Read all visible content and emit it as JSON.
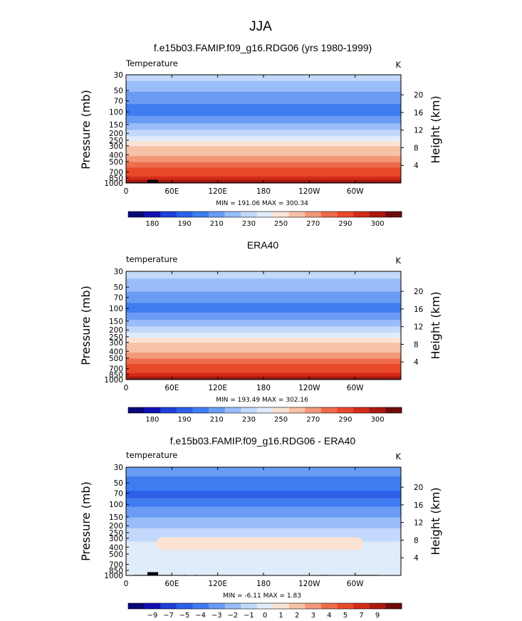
{
  "figure": {
    "title": "JJA"
  },
  "colorbars": {
    "temp": {
      "colors": [
        "#08087a",
        "#1010b4",
        "#1f3fd8",
        "#2d5fe8",
        "#3f7cf0",
        "#6a9cf4",
        "#98bdf8",
        "#c2d9fb",
        "#e1ecfb",
        "#fbe2d4",
        "#f6c1a6",
        "#f2977a",
        "#ee6b4c",
        "#e9482a",
        "#d42b18",
        "#a81a10",
        "#6e0c0c"
      ],
      "labels": [
        {
          "idx": 1,
          "text": "180"
        },
        {
          "idx": 3,
          "text": "190"
        },
        {
          "idx": 5,
          "text": "210"
        },
        {
          "idx": 7,
          "text": "230"
        },
        {
          "idx": 9,
          "text": "250"
        },
        {
          "idx": 11,
          "text": "270"
        },
        {
          "idx": 13,
          "text": "290"
        },
        {
          "idx": 15,
          "text": "300"
        }
      ]
    },
    "diff": {
      "colors": [
        "#08087a",
        "#1010b4",
        "#1f3fd8",
        "#2d5fe8",
        "#3f7cf0",
        "#6a9cf4",
        "#98bdf8",
        "#c2d9fb",
        "#e1ecfb",
        "#fbe2d4",
        "#f6c1a6",
        "#f2977a",
        "#ee6b4c",
        "#e9482a",
        "#d42b18",
        "#a81a10",
        "#6e0c0c"
      ],
      "labels": [
        {
          "idx": 1,
          "text": "−9"
        },
        {
          "idx": 2,
          "text": "−7"
        },
        {
          "idx": 3,
          "text": "−5"
        },
        {
          "idx": 4,
          "text": "−4"
        },
        {
          "idx": 5,
          "text": "−3"
        },
        {
          "idx": 6,
          "text": "−2"
        },
        {
          "idx": 7,
          "text": "−1"
        },
        {
          "idx": 8,
          "text": "0"
        },
        {
          "idx": 9,
          "text": "1"
        },
        {
          "idx": 10,
          "text": "2"
        },
        {
          "idx": 11,
          "text": "3"
        },
        {
          "idx": 12,
          "text": "4"
        },
        {
          "idx": 13,
          "text": "5"
        },
        {
          "idx": 14,
          "text": "7"
        },
        {
          "idx": 15,
          "text": "9"
        }
      ]
    }
  },
  "chart_data": [
    {
      "type": "heatmap",
      "title": "f.e15b03.FAMIP.f09_g16.RDG06 (yrs 1980-1999)",
      "left_label": "Temperature",
      "right_label": "K",
      "ylabel": "Pressure (mb)",
      "y2label": "Height (km)",
      "x_ticks": [
        "0",
        "60E",
        "120E",
        "180",
        "120W",
        "60W"
      ],
      "y_ticks": [
        "30",
        "50",
        "70",
        "100",
        "150",
        "200",
        "250",
        "300",
        "400",
        "500",
        "700",
        "850",
        "1000"
      ],
      "y2_ticks": [
        "20",
        "16",
        "12",
        "8",
        "4"
      ],
      "ylim": [
        1000,
        30
      ],
      "min": 191.06,
      "max": 300.34,
      "stats_text": "MIN = 191.06  MAX = 300.34",
      "colorbar": "temp",
      "layers": [
        {
          "p": 30,
          "v": 228
        },
        {
          "p": 45,
          "v": 217
        },
        {
          "p": 60,
          "v": 205
        },
        {
          "p": 100,
          "v": 196
        },
        {
          "p": 130,
          "v": 205
        },
        {
          "p": 160,
          "v": 215
        },
        {
          "p": 200,
          "v": 222
        },
        {
          "p": 240,
          "v": 232
        },
        {
          "p": 280,
          "v": 244
        },
        {
          "p": 330,
          "v": 252
        },
        {
          "p": 380,
          "v": 258
        },
        {
          "p": 460,
          "v": 264
        },
        {
          "p": 560,
          "v": 272
        },
        {
          "p": 660,
          "v": 280
        },
        {
          "p": 760,
          "v": 288
        },
        {
          "p": 860,
          "v": 294
        },
        {
          "p": 940,
          "v": 298
        },
        {
          "p": 1000,
          "v": 300
        }
      ],
      "topography_shown": true
    },
    {
      "type": "heatmap",
      "title": "ERA40",
      "left_label": "temperature",
      "right_label": "K",
      "ylabel": "Pressure (mb)",
      "y2label": "Height (km)",
      "x_ticks": [
        "0",
        "60E",
        "120E",
        "180",
        "120W",
        "60W"
      ],
      "y_ticks": [
        "30",
        "50",
        "70",
        "100",
        "150",
        "200",
        "250",
        "300",
        "400",
        "500",
        "700",
        "850",
        "1000"
      ],
      "y2_ticks": [
        "20",
        "16",
        "12",
        "8",
        "4"
      ],
      "ylim": [
        1000,
        30
      ],
      "min": 193.49,
      "max": 302.16,
      "stats_text": "MIN = 193.49  MAX = 302.16",
      "colorbar": "temp",
      "layers": [
        {
          "p": 30,
          "v": 228
        },
        {
          "p": 48,
          "v": 217
        },
        {
          "p": 70,
          "v": 208
        },
        {
          "p": 100,
          "v": 198
        },
        {
          "p": 130,
          "v": 206
        },
        {
          "p": 160,
          "v": 215
        },
        {
          "p": 200,
          "v": 222
        },
        {
          "p": 240,
          "v": 232
        },
        {
          "p": 280,
          "v": 244
        },
        {
          "p": 330,
          "v": 252
        },
        {
          "p": 380,
          "v": 258
        },
        {
          "p": 460,
          "v": 264
        },
        {
          "p": 560,
          "v": 272
        },
        {
          "p": 660,
          "v": 280
        },
        {
          "p": 760,
          "v": 288
        },
        {
          "p": 860,
          "v": 294
        },
        {
          "p": 940,
          "v": 298
        },
        {
          "p": 1000,
          "v": 301
        }
      ],
      "topography_shown": false
    },
    {
      "type": "heatmap",
      "title": "f.e15b03.FAMIP.f09_g16.RDG06 - ERA40",
      "left_label": "temperature",
      "right_label": "K",
      "ylabel": "Pressure (mb)",
      "y2label": "Height (km)",
      "x_ticks": [
        "0",
        "60E",
        "120E",
        "180",
        "120W",
        "60W"
      ],
      "y_ticks": [
        "30",
        "50",
        "70",
        "100",
        "150",
        "200",
        "250",
        "300",
        "400",
        "500",
        "700",
        "850",
        "1000"
      ],
      "y2_ticks": [
        "20",
        "16",
        "12",
        "8",
        "4"
      ],
      "ylim": [
        1000,
        30
      ],
      "min": -6.11,
      "max": 1.83,
      "stats_text": "MIN =  -6.11  MAX =   1.83",
      "colorbar": "diff",
      "layers": [
        {
          "p": 30,
          "v": -3.5
        },
        {
          "p": 55,
          "v": -4.5
        },
        {
          "p": 75,
          "v": -5.5
        },
        {
          "p": 90,
          "v": -4.5
        },
        {
          "p": 130,
          "v": -3.5
        },
        {
          "p": 180,
          "v": -2.5
        },
        {
          "p": 260,
          "v": -1.5
        },
        {
          "p": 430,
          "v": -0.5
        },
        {
          "p": 760,
          "v": -0.5
        },
        {
          "p": 1000,
          "v": -0.5
        }
      ],
      "warm_band": {
        "p_top": 290,
        "p_bottom": 440,
        "lon_start": 40,
        "lon_end": 310,
        "v": 0.5
      },
      "topography_shown": true
    }
  ]
}
